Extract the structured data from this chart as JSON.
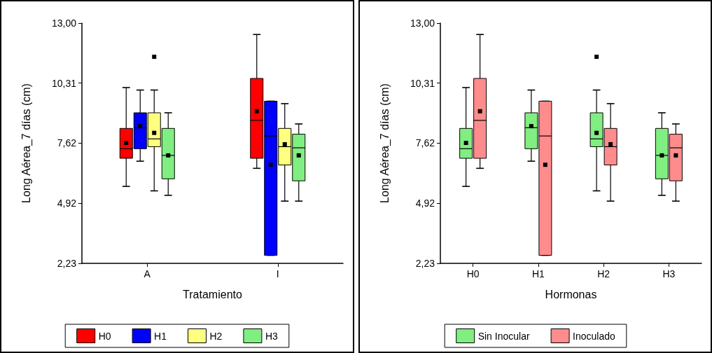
{
  "chart_data": [
    {
      "type": "box",
      "xlabel": "Tratamiento",
      "ylabel": "Long Aérea_7 días (cm)",
      "categories": [
        "A",
        "I"
      ],
      "ylim": [
        2.23,
        13
      ],
      "yticks": [
        {
          "value": 2.23,
          "label": "2,23"
        },
        {
          "value": 4.92,
          "label": "4,92"
        },
        {
          "value": 7.62,
          "label": "7,62"
        },
        {
          "value": 10.31,
          "label": "10,31"
        },
        {
          "value": 13,
          "label": "13,00"
        }
      ],
      "grid": false,
      "legend": "bottom",
      "marker": "square",
      "series": [
        {
          "name": "H0",
          "color": "#ff0000",
          "boxes": [
            {
              "low": 5.68,
              "q1": 6.94,
              "median": 7.37,
              "q3": 8.28,
              "high": 10.11,
              "mean": 7.63
            },
            {
              "low": 6.49,
              "q1": 6.94,
              "median": 8.64,
              "q3": 10.52,
              "high": 12.49,
              "mean": 9.05
            }
          ]
        },
        {
          "name": "H1",
          "color": "#0000ff",
          "boxes": [
            {
              "low": 6.81,
              "q1": 7.37,
              "median": 8.31,
              "q3": 8.98,
              "high": 10.0,
              "mean": 8.38
            },
            {
              "low": 2.59,
              "q1": 2.59,
              "median": 7.94,
              "q3": 9.5,
              "high": 9.5,
              "mean": 6.65
            }
          ]
        },
        {
          "name": "H2",
          "color": "#ffff80",
          "boxes": [
            {
              "low": 5.48,
              "q1": 7.46,
              "median": 7.81,
              "q3": 8.98,
              "high": 10.0,
              "mean": 8.08,
              "outliers": [
                11.49
              ]
            },
            {
              "low": 5.02,
              "q1": 6.64,
              "median": 7.46,
              "q3": 8.28,
              "high": 9.39,
              "mean": 7.57
            }
          ]
        },
        {
          "name": "H3",
          "color": "#80ee80",
          "boxes": [
            {
              "low": 5.28,
              "q1": 6.02,
              "median": 7.07,
              "q3": 8.28,
              "high": 8.98,
              "mean": 7.07
            },
            {
              "low": 5.02,
              "q1": 5.93,
              "median": 7.41,
              "q3": 8.02,
              "high": 8.48,
              "mean": 7.07
            }
          ]
        }
      ]
    },
    {
      "type": "box",
      "xlabel": "Hormonas",
      "ylabel": "Long Aérea_7 días (cm)",
      "categories": [
        "H0",
        "H1",
        "H2",
        "H3"
      ],
      "ylim": [
        2.23,
        13
      ],
      "yticks": [
        {
          "value": 2.23,
          "label": "2,23"
        },
        {
          "value": 4.92,
          "label": "4,92"
        },
        {
          "value": 7.62,
          "label": "7,62"
        },
        {
          "value": 10.31,
          "label": "10,31"
        },
        {
          "value": 13,
          "label": "13,00"
        }
      ],
      "grid": false,
      "legend": "bottom",
      "marker": "square",
      "series": [
        {
          "name": "Sin Inocular",
          "color": "#80ee80",
          "boxes": [
            {
              "low": 5.68,
              "q1": 6.94,
              "median": 7.37,
              "q3": 8.28,
              "high": 10.11,
              "mean": 7.63
            },
            {
              "low": 6.81,
              "q1": 7.37,
              "median": 8.31,
              "q3": 8.98,
              "high": 10.0,
              "mean": 8.38
            },
            {
              "low": 5.48,
              "q1": 7.46,
              "median": 7.81,
              "q3": 8.98,
              "high": 10.0,
              "mean": 8.08,
              "outliers": [
                11.49
              ]
            },
            {
              "low": 5.28,
              "q1": 6.02,
              "median": 7.07,
              "q3": 8.28,
              "high": 8.98,
              "mean": 7.07
            }
          ]
        },
        {
          "name": "Inoculado",
          "color": "#ff8c8c",
          "boxes": [
            {
              "low": 6.49,
              "q1": 6.94,
              "median": 8.64,
              "q3": 10.52,
              "high": 12.49,
              "mean": 9.05
            },
            {
              "low": 2.59,
              "q1": 2.59,
              "median": 7.94,
              "q3": 9.5,
              "high": 9.5,
              "mean": 6.65
            },
            {
              "low": 5.02,
              "q1": 6.64,
              "median": 7.46,
              "q3": 8.28,
              "high": 9.39,
              "mean": 7.57
            },
            {
              "low": 5.02,
              "q1": 5.93,
              "median": 7.41,
              "q3": 8.02,
              "high": 8.48,
              "mean": 7.07
            }
          ]
        }
      ]
    }
  ]
}
